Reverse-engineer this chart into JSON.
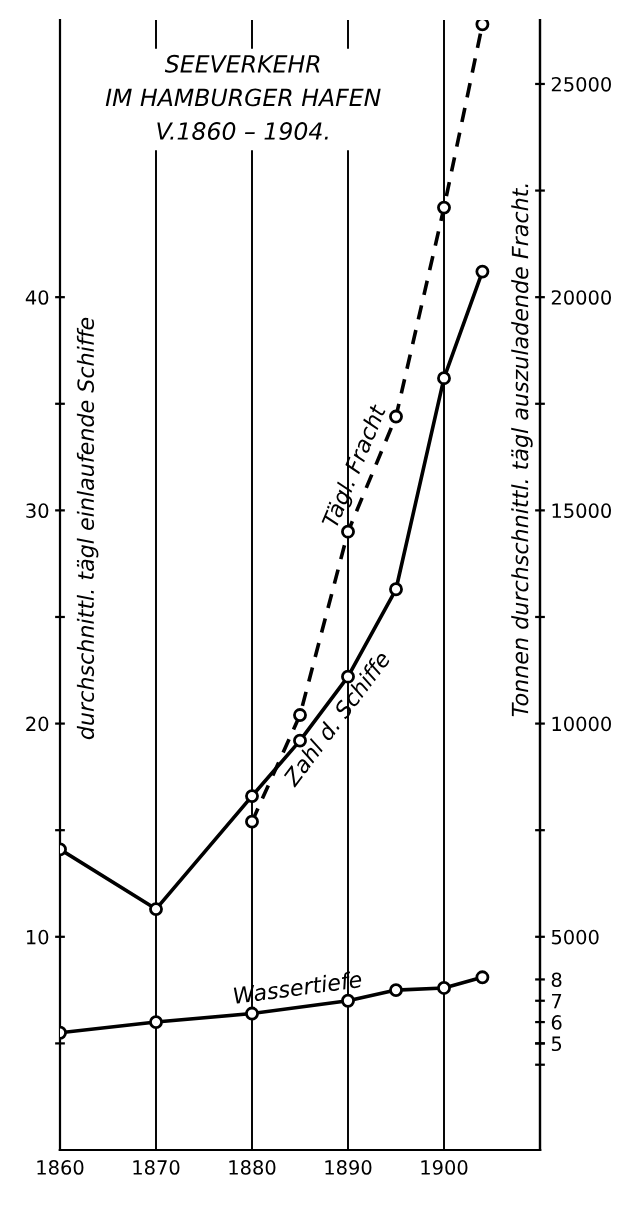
{
  "chart_data": {
    "type": "line",
    "title": "SEEVERKEHR\nIM HAMBURGER HAFEN\nV.1860 – 1904.",
    "ylabel": "durchschnittl. tägl einlaufende Schiffe",
    "y2label": "Tonnen durchschnittl. tägl auszuladende Fracht.",
    "xlim": [
      1860,
      1910
    ],
    "xticks": [
      1860,
      1870,
      1880,
      1890,
      1900
    ],
    "ylim": [
      0,
      53
    ],
    "yticks": [
      {
        "value": 5,
        "label": null
      },
      10,
      {
        "value": 15,
        "label": null
      },
      20,
      {
        "value": 25,
        "label": null
      },
      30,
      {
        "value": 35,
        "label": null
      },
      40
    ],
    "y2lim": [
      0,
      26500
    ],
    "y2ticks": [
      {
        "value": 2500,
        "label": null
      },
      5000,
      {
        "value": 7500,
        "label": null
      },
      10000,
      {
        "value": 12500,
        "label": null
      },
      15000,
      {
        "value": 17500,
        "label": null
      },
      20000,
      {
        "value": 22500,
        "label": null
      },
      25000
    ],
    "y3lim": [
      0,
      53
    ],
    "y3ticks": [
      {
        "value": 4,
        "label": null
      },
      5,
      6,
      7,
      8
    ],
    "grid": "x",
    "marker": "circle",
    "legend": false,
    "series": [
      {
        "name": "Zahl d. Schiffe",
        "color": "#000000",
        "line_style": "solid",
        "x": [
          1860,
          1870,
          1880,
          1885,
          1890,
          1895,
          1900,
          1904
        ],
        "values": [
          14.1,
          11.3,
          16.6,
          19.2,
          22.2,
          26.3,
          36.2,
          41.2
        ]
      },
      {
        "name": "Tägl. Fracht",
        "color": "#000000",
        "line_style": "dashed",
        "axis": "y2",
        "x": [
          1880,
          1885,
          1890,
          1895,
          1900,
          1904
        ],
        "values": [
          7700,
          10200,
          14500,
          17200,
          22100,
          26400
        ]
      },
      {
        "name": "Wassertiefe",
        "color": "#000000",
        "line_style": "solid",
        "axis": "y3",
        "x": [
          1860,
          1870,
          1880,
          1890,
          1895,
          1900,
          1904
        ],
        "values": [
          5.5,
          6.0,
          6.4,
          7.0,
          7.5,
          7.6,
          8.1
        ]
      }
    ]
  }
}
